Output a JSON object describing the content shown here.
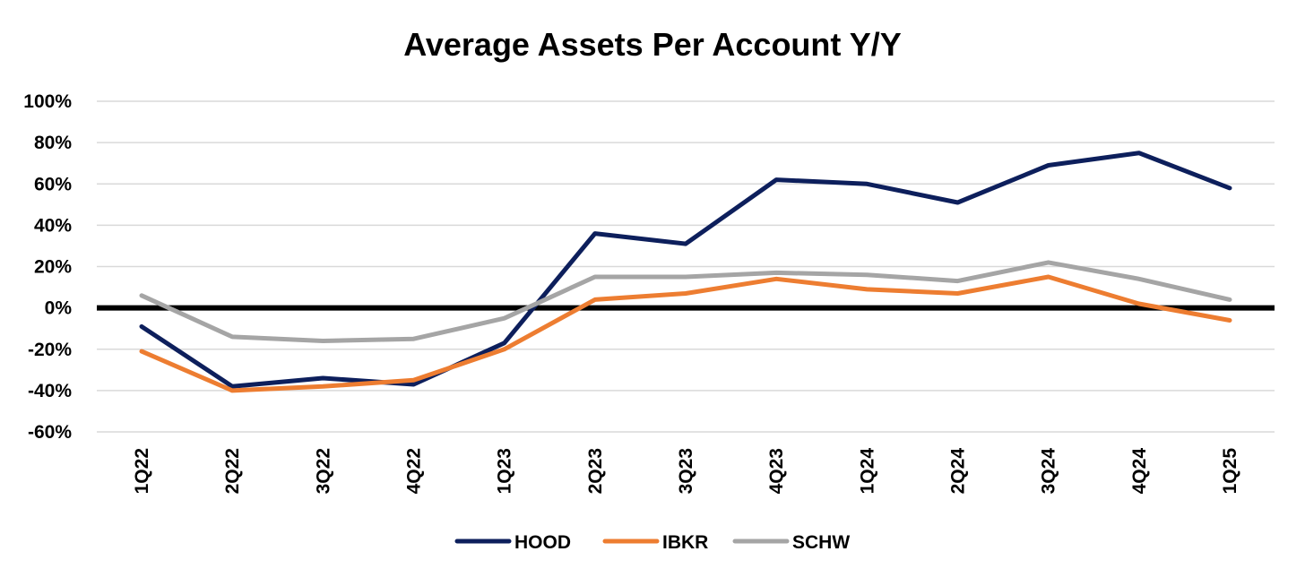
{
  "chart_data": {
    "type": "line",
    "title": "Average Assets Per Account Y/Y",
    "categories": [
      "1Q22",
      "2Q22",
      "3Q22",
      "4Q22",
      "1Q23",
      "2Q23",
      "3Q23",
      "4Q23",
      "1Q24",
      "2Q24",
      "3Q24",
      "4Q24",
      "1Q25"
    ],
    "series": [
      {
        "name": "HOOD",
        "color": "#0d1f5c",
        "values": [
          -9,
          -38,
          -34,
          -37,
          -17,
          36,
          31,
          62,
          60,
          51,
          69,
          75,
          58
        ]
      },
      {
        "name": "IBKR",
        "color": "#ed7d31",
        "values": [
          -21,
          -40,
          -38,
          -35,
          -20,
          4,
          7,
          14,
          9,
          7,
          15,
          2,
          -6
        ]
      },
      {
        "name": "SCHW",
        "color": "#a5a5a5",
        "values": [
          6,
          -14,
          -16,
          -15,
          -5,
          15,
          15,
          17,
          16,
          13,
          22,
          14,
          4
        ]
      }
    ],
    "ylim": [
      -60,
      100
    ],
    "yticks": [
      100,
      80,
      60,
      40,
      20,
      0,
      -20,
      -40,
      -60
    ],
    "ytick_labels": [
      "100%",
      "80%",
      "60%",
      "40%",
      "20%",
      "0%",
      "-20%",
      "-40%",
      "-60%"
    ],
    "grid": true,
    "legend": "bottom",
    "zero_line_color": "#000000"
  }
}
